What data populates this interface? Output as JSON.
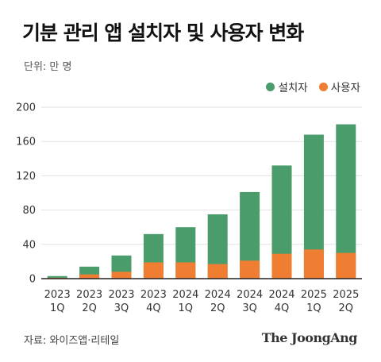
{
  "title": "기분 관리 앱 설치자 및 사용자 변화",
  "unit_label": "단위: 만 명",
  "source": "자료: 와이즈앱·리테일",
  "brand": "The JoongAng",
  "colors": {
    "installs": "#4a9c6a",
    "users": "#ef7e32",
    "grid": "#e2e2e2",
    "axis": "#222222"
  },
  "chart_data": {
    "type": "bar",
    "stacked": false,
    "overlay": true,
    "categories": [
      [
        "2023",
        "1Q"
      ],
      [
        "2023",
        "2Q"
      ],
      [
        "2023",
        "3Q"
      ],
      [
        "2023",
        "4Q"
      ],
      [
        "2024",
        "1Q"
      ],
      [
        "2024",
        "2Q"
      ],
      [
        "2024",
        "3Q"
      ],
      [
        "2024",
        "4Q"
      ],
      [
        "2025",
        "1Q"
      ],
      [
        "2025",
        "2Q"
      ]
    ],
    "series": [
      {
        "name": "설치자",
        "color": "#4a9c6a",
        "values": [
          3,
          14,
          27,
          52,
          60,
          75,
          101,
          132,
          168,
          180
        ]
      },
      {
        "name": "사용자",
        "color": "#ef7e32",
        "values": [
          1,
          5,
          8,
          19,
          19,
          17,
          21,
          29,
          34,
          30
        ]
      }
    ],
    "ylim": [
      0,
      200
    ],
    "yticks": [
      0,
      40,
      80,
      120,
      160,
      200
    ],
    "grid": true,
    "legend": "top-right",
    "title": "기분 관리 앱 설치자 및 사용자 변화",
    "xlabel": "",
    "ylabel": ""
  }
}
